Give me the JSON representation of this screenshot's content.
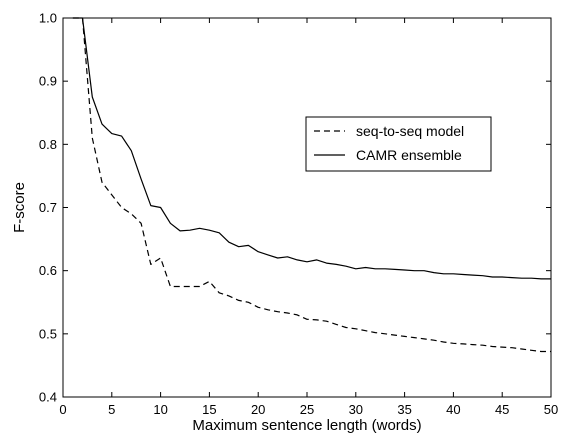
{
  "chart_data": {
    "type": "line",
    "title": "",
    "xlabel": "Maximum sentence length (words)",
    "ylabel": "F-score",
    "xlim": [
      0,
      50
    ],
    "ylim": [
      0.4,
      1.0
    ],
    "grid": false,
    "legend_position": "upper-right-inside",
    "x_ticks": [
      0,
      5,
      10,
      15,
      20,
      25,
      30,
      35,
      40,
      45,
      50
    ],
    "y_ticks": [
      0.4,
      0.5,
      0.6,
      0.7,
      0.8,
      0.9,
      1.0
    ],
    "x_tick_labels": [
      "0",
      "5",
      "10",
      "15",
      "20",
      "25",
      "30",
      "35",
      "40",
      "45",
      "50"
    ],
    "y_tick_labels": [
      "0.4",
      "0.5",
      "0.6",
      "0.7",
      "0.8",
      "0.9",
      "1.0"
    ],
    "series": [
      {
        "name": "seq-to-seq model",
        "style": "dashed",
        "color": "#000000",
        "x": [
          1,
          2,
          3,
          4,
          5,
          6,
          7,
          8,
          9,
          10,
          11,
          12,
          13,
          14,
          15,
          16,
          17,
          18,
          19,
          20,
          21,
          22,
          23,
          24,
          25,
          26,
          27,
          28,
          29,
          30,
          31,
          32,
          33,
          34,
          35,
          36,
          37,
          38,
          39,
          40,
          41,
          42,
          43,
          44,
          45,
          46,
          47,
          48,
          49,
          50
        ],
        "values": [
          1.0,
          1.0,
          0.81,
          0.74,
          0.72,
          0.7,
          0.69,
          0.675,
          0.61,
          0.62,
          0.575,
          0.575,
          0.575,
          0.575,
          0.583,
          0.565,
          0.56,
          0.553,
          0.55,
          0.542,
          0.538,
          0.535,
          0.533,
          0.53,
          0.523,
          0.522,
          0.52,
          0.515,
          0.51,
          0.508,
          0.505,
          0.502,
          0.5,
          0.498,
          0.496,
          0.494,
          0.492,
          0.49,
          0.487,
          0.485,
          0.484,
          0.483,
          0.482,
          0.48,
          0.479,
          0.478,
          0.476,
          0.474,
          0.472,
          0.472
        ]
      },
      {
        "name": "CAMR ensemble",
        "style": "solid",
        "color": "#000000",
        "x": [
          1,
          2,
          3,
          4,
          5,
          6,
          7,
          8,
          9,
          10,
          11,
          12,
          13,
          14,
          15,
          16,
          17,
          18,
          19,
          20,
          21,
          22,
          23,
          24,
          25,
          26,
          27,
          28,
          29,
          30,
          31,
          32,
          33,
          34,
          35,
          36,
          37,
          38,
          39,
          40,
          41,
          42,
          43,
          44,
          45,
          46,
          47,
          48,
          49,
          50
        ],
        "values": [
          1.0,
          1.0,
          0.875,
          0.832,
          0.817,
          0.813,
          0.79,
          0.745,
          0.703,
          0.7,
          0.675,
          0.663,
          0.664,
          0.667,
          0.664,
          0.66,
          0.645,
          0.638,
          0.64,
          0.63,
          0.625,
          0.62,
          0.622,
          0.617,
          0.614,
          0.617,
          0.612,
          0.61,
          0.607,
          0.603,
          0.605,
          0.603,
          0.603,
          0.602,
          0.601,
          0.6,
          0.6,
          0.597,
          0.595,
          0.595,
          0.594,
          0.593,
          0.592,
          0.59,
          0.59,
          0.589,
          0.588,
          0.588,
          0.587,
          0.587
        ]
      }
    ]
  }
}
